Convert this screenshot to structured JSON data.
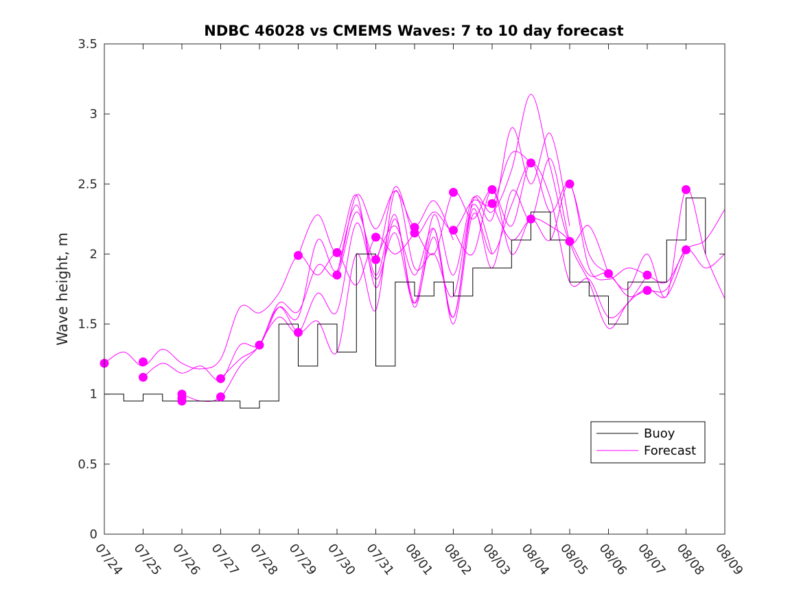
{
  "chart_data": {
    "type": "line",
    "title": "NDBC 46028 vs CMEMS Waves: 7 to 10 day forecast",
    "xlabel": "",
    "ylabel": "Wave height, m",
    "xlim": [
      "2000-07-24",
      "2000-08-09"
    ],
    "ylim": [
      0,
      3.5
    ],
    "x_ticks": [
      "07/24",
      "07/25",
      "07/26",
      "07/27",
      "07/28",
      "07/29",
      "07/30",
      "07/31",
      "08/01",
      "08/02",
      "08/03",
      "08/04",
      "08/05",
      "08/06",
      "08/07",
      "08/08",
      "08/09"
    ],
    "y_ticks": [
      "0",
      "0.5",
      "1",
      "1.5",
      "2",
      "2.5",
      "3",
      "3.5"
    ],
    "grid": false,
    "legend": {
      "placement": "lower-right",
      "entries": [
        "Buoy",
        "Forecast"
      ]
    },
    "colors": {
      "buoy": "#000000",
      "forecast": "#ff00ff",
      "axis": "#262626"
    },
    "series": [
      {
        "name": "Buoy",
        "x": [
          "07/24",
          "07/24 12:00",
          "07/25",
          "07/25 12:00",
          "07/26",
          "07/26 12:00",
          "07/27",
          "07/27 12:00",
          "07/28",
          "07/28 12:00",
          "07/29",
          "07/29 12:00",
          "07/30",
          "07/30 12:00",
          "07/31",
          "07/31 12:00",
          "08/01",
          "08/01 12:00",
          "08/02",
          "08/02 12:00",
          "08/03",
          "08/03 12:00",
          "08/04",
          "08/04 12:00",
          "08/05",
          "08/05 12:00",
          "08/06",
          "08/06 12:00",
          "08/07",
          "08/07 12:00",
          "08/08",
          "08/08 12:00"
        ],
        "values": [
          1.0,
          0.95,
          1.0,
          0.95,
          0.95,
          0.95,
          0.95,
          0.9,
          0.95,
          1.5,
          1.2,
          1.5,
          1.3,
          2.0,
          1.2,
          1.8,
          1.7,
          1.8,
          1.7,
          1.9,
          1.9,
          2.1,
          2.3,
          2.1,
          1.8,
          1.7,
          1.5,
          1.8,
          1.8,
          2.1,
          2.4,
          2.0
        ]
      }
    ],
    "forecast_curves": [
      {
        "x": [
          "07/24",
          "07/24 12:00",
          "07/25",
          "07/25 12:00",
          "07/26",
          "07/26 12:00",
          "07/27",
          "07/27 12:00",
          "07/28",
          "07/28 12:00",
          "07/29",
          "07/29 12:00",
          "07/30",
          "07/30 12:00",
          "07/31",
          "07/31 12:00",
          "08/01"
        ],
        "values": [
          1.22,
          1.3,
          1.2,
          1.32,
          1.22,
          1.18,
          1.25,
          1.62,
          1.58,
          1.72,
          1.99,
          1.85,
          2.0,
          1.78,
          2.12,
          2.0,
          2.15
        ]
      },
      {
        "x": [
          "07/25",
          "07/25 12:00",
          "07/26",
          "07/26 12:00",
          "07/27",
          "07/27 12:00",
          "07/28",
          "07/28 12:00",
          "07/29",
          "07/29 12:00",
          "07/30",
          "07/30 12:00",
          "07/31",
          "07/31 12:00",
          "08/01",
          "08/01 12:00",
          "08/02"
        ],
        "values": [
          1.12,
          1.22,
          1.15,
          1.2,
          1.1,
          1.35,
          1.35,
          1.62,
          1.55,
          2.1,
          1.88,
          2.42,
          2.18,
          2.45,
          2.2,
          2.38,
          2.1
        ]
      },
      {
        "x": [
          "07/26",
          "07/26 12:00",
          "07/27",
          "07/27 12:00",
          "07/28",
          "07/28 12:00",
          "07/29",
          "07/29 12:00",
          "07/30",
          "07/30 12:00",
          "07/31",
          "07/31 12:00",
          "08/01",
          "08/01 12:00",
          "08/02",
          "08/02 12:00",
          "08/03"
        ],
        "values": [
          1.0,
          0.95,
          0.98,
          1.2,
          1.35,
          1.62,
          1.44,
          1.52,
          1.3,
          2.0,
          1.6,
          2.45,
          1.9,
          2.0,
          1.7,
          2.35,
          2.0
        ]
      },
      {
        "x": [
          "07/27",
          "07/27 12:00",
          "07/28",
          "07/28 12:00",
          "07/29",
          "07/29 12:00",
          "07/30",
          "07/30 12:00",
          "07/31",
          "07/31 12:00",
          "08/01",
          "08/01 12:00",
          "08/02",
          "08/02 12:00",
          "08/03",
          "08/03 12:00",
          "08/04"
        ],
        "values": [
          1.11,
          1.25,
          1.35,
          1.65,
          1.59,
          1.92,
          1.85,
          2.3,
          1.96,
          2.48,
          2.14,
          2.3,
          2.17,
          2.38,
          2.36,
          2.72,
          2.65
        ]
      },
      {
        "x": [
          "07/28",
          "07/28 12:00",
          "07/29",
          "07/29 12:00",
          "07/30",
          "07/30 12:00",
          "07/31",
          "07/31 12:00",
          "08/01",
          "08/01 12:00",
          "08/02",
          "08/02 12:00",
          "08/03",
          "08/03 12:00",
          "08/04",
          "08/04 12:00",
          "08/05"
        ],
        "values": [
          1.35,
          1.55,
          1.44,
          1.72,
          1.59,
          2.22,
          1.82,
          2.15,
          1.65,
          2.28,
          1.85,
          2.4,
          2.25,
          2.9,
          2.5,
          2.86,
          2.2
        ]
      },
      {
        "x": [
          "07/29",
          "07/29 12:00",
          "07/30",
          "07/30 12:00",
          "07/31",
          "07/31 12:00",
          "08/01",
          "08/01 12:00",
          "08/02",
          "08/02 12:00",
          "08/03",
          "08/03 12:00",
          "08/04",
          "08/04 12:00",
          "08/05",
          "08/05 12:00",
          "08/06"
        ],
        "values": [
          1.99,
          2.28,
          2.01,
          2.42,
          1.76,
          2.25,
          1.65,
          2.12,
          1.55,
          2.38,
          2.3,
          2.6,
          3.14,
          2.62,
          2.09,
          2.2,
          1.86
        ]
      },
      {
        "x": [
          "07/30",
          "07/30 12:00",
          "07/31",
          "07/31 12:00",
          "08/01",
          "08/01 12:00",
          "08/02",
          "08/02 12:00",
          "08/03",
          "08/03 12:00",
          "08/04",
          "08/04 12:00",
          "08/05",
          "08/05 12:00",
          "08/06",
          "08/06 12:00",
          "08/07"
        ],
        "values": [
          1.85,
          2.35,
          1.85,
          2.28,
          1.62,
          2.18,
          1.5,
          2.28,
          2.0,
          2.35,
          2.65,
          2.4,
          1.8,
          1.82,
          1.55,
          1.65,
          1.85
        ]
      },
      {
        "x": [
          "07/31",
          "07/31 12:00",
          "08/01",
          "08/01 12:00",
          "08/02",
          "08/02 12:00",
          "08/03",
          "08/03 12:00",
          "08/04",
          "08/04 12:00",
          "08/05",
          "08/05 12:00",
          "08/06",
          "08/06 12:00",
          "08/07",
          "08/07 12:00",
          "08/08"
        ],
        "values": [
          1.96,
          2.2,
          1.85,
          2.18,
          1.55,
          2.32,
          1.9,
          2.45,
          2.25,
          2.68,
          2.09,
          1.8,
          1.47,
          1.65,
          1.75,
          1.7,
          2.03
        ]
      },
      {
        "x": [
          "08/01",
          "08/01 12:00",
          "08/02",
          "08/02 12:00",
          "08/03",
          "08/03 12:00",
          "08/04",
          "08/04 12:00",
          "08/05",
          "08/05 12:00",
          "08/06",
          "08/06 12:00",
          "08/07",
          "08/07 12:00",
          "08/08",
          "08/08 12:00",
          "08/09"
        ],
        "values": [
          2.19,
          2.0,
          2.44,
          2.25,
          2.46,
          2.2,
          2.65,
          2.3,
          2.5,
          2.0,
          1.86,
          1.75,
          2.0,
          1.7,
          2.46,
          2.0,
          1.68
        ]
      },
      {
        "x": [
          "08/02",
          "08/02 12:00",
          "08/03",
          "08/03 12:00",
          "08/04",
          "08/04 12:00",
          "08/05",
          "08/05 12:00",
          "08/06",
          "08/06 12:00",
          "08/07",
          "08/07 12:00",
          "08/08",
          "08/08 12:00",
          "08/09"
        ],
        "values": [
          2.17,
          2.0,
          2.46,
          2.0,
          2.25,
          2.1,
          2.5,
          1.9,
          1.82,
          1.9,
          1.85,
          1.8,
          2.03,
          2.1,
          2.32
        ]
      },
      {
        "x": [
          "08/03",
          "08/03 12:00",
          "08/04",
          "08/04 12:00",
          "08/05",
          "08/05 12:00",
          "08/06",
          "08/06 12:00",
          "08/07",
          "08/07 12:00",
          "08/08",
          "08/08 12:00",
          "08/09"
        ],
        "values": [
          2.36,
          2.1,
          2.25,
          2.2,
          2.09,
          1.85,
          1.86,
          1.7,
          1.74,
          1.75,
          2.03,
          1.9,
          2.0
        ]
      }
    ],
    "forecast_markers": [
      {
        "x": "07/24",
        "value": 1.22
      },
      {
        "x": "07/25",
        "value": 1.23
      },
      {
        "x": "07/25",
        "value": 1.12
      },
      {
        "x": "07/26",
        "value": 1.0
      },
      {
        "x": "07/26",
        "value": 0.97
      },
      {
        "x": "07/26",
        "value": 0.95
      },
      {
        "x": "07/27",
        "value": 1.11
      },
      {
        "x": "07/27",
        "value": 0.98
      },
      {
        "x": "07/28",
        "value": 1.35
      },
      {
        "x": "07/29",
        "value": 1.99
      },
      {
        "x": "07/29",
        "value": 1.44
      },
      {
        "x": "07/30",
        "value": 2.01
      },
      {
        "x": "07/30",
        "value": 1.85
      },
      {
        "x": "07/31",
        "value": 2.12
      },
      {
        "x": "07/31",
        "value": 1.96
      },
      {
        "x": "08/01",
        "value": 2.19
      },
      {
        "x": "08/01",
        "value": 2.15
      },
      {
        "x": "08/02",
        "value": 2.44
      },
      {
        "x": "08/02",
        "value": 2.17
      },
      {
        "x": "08/03",
        "value": 2.46
      },
      {
        "x": "08/03",
        "value": 2.36
      },
      {
        "x": "08/04",
        "value": 2.65
      },
      {
        "x": "08/04",
        "value": 2.25
      },
      {
        "x": "08/05",
        "value": 2.5
      },
      {
        "x": "08/05",
        "value": 2.09
      },
      {
        "x": "08/06",
        "value": 1.86
      },
      {
        "x": "08/07",
        "value": 1.85
      },
      {
        "x": "08/07",
        "value": 1.74
      },
      {
        "x": "08/08",
        "value": 2.46
      },
      {
        "x": "08/08",
        "value": 2.03
      }
    ]
  }
}
